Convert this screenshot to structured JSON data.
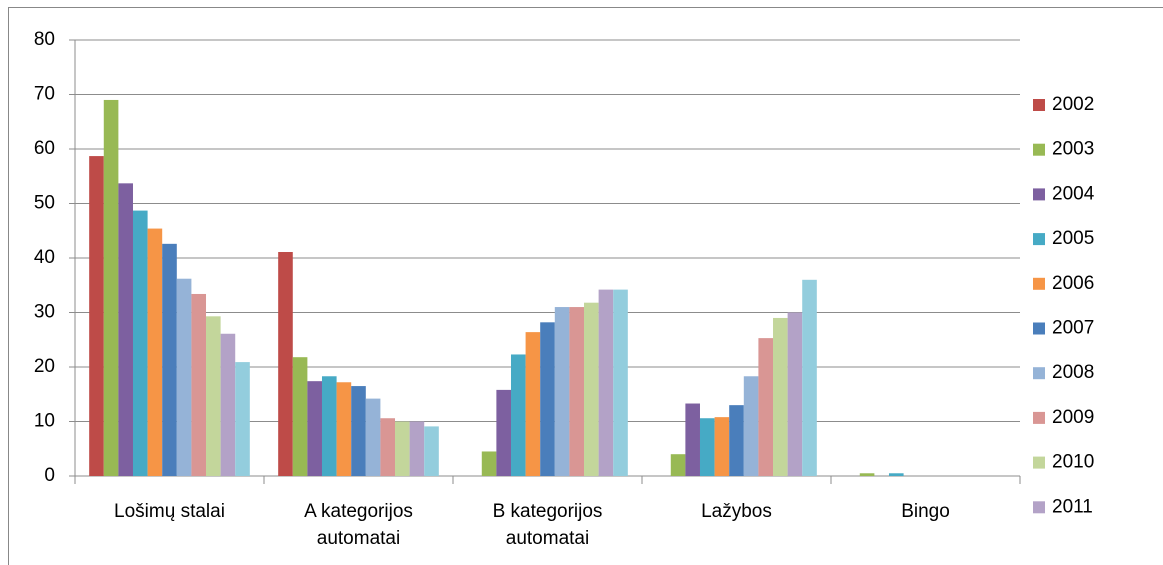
{
  "chart_data": {
    "type": "bar",
    "categories": [
      "Lošimų stalai",
      "A kategorijos automatai",
      "B kategorijos automatai",
      "Lažybos",
      "Bingo"
    ],
    "series": [
      {
        "name": "2002",
        "color": "#BE4B48",
        "values": [
          58.7,
          41.1,
          0,
          0,
          0
        ]
      },
      {
        "name": "2003",
        "color": "#98B954",
        "values": [
          69,
          21.8,
          4.5,
          4,
          0.5
        ]
      },
      {
        "name": "2004",
        "color": "#7D60A0",
        "values": [
          53.7,
          17.4,
          15.8,
          13.3,
          0
        ]
      },
      {
        "name": "2005",
        "color": "#46AAC5",
        "values": [
          48.7,
          18.3,
          22.3,
          10.6,
          0.5
        ]
      },
      {
        "name": "2006",
        "color": "#F69546",
        "values": [
          45.4,
          17.2,
          26.4,
          10.8,
          0
        ]
      },
      {
        "name": "2007",
        "color": "#4A7EBB",
        "values": [
          42.6,
          16.5,
          28.2,
          13,
          0
        ]
      },
      {
        "name": "2008",
        "color": "#95B3D7",
        "values": [
          36.2,
          14.2,
          31,
          18.3,
          0
        ]
      },
      {
        "name": "2009",
        "color": "#D99694",
        "values": [
          33.4,
          10.6,
          31,
          25.3,
          0
        ]
      },
      {
        "name": "2010",
        "color": "#C3D69B",
        "values": [
          29.3,
          10,
          31.8,
          29,
          0
        ]
      },
      {
        "name": "2011",
        "color": "#B3A2C7",
        "values": [
          26.1,
          10,
          34.2,
          30,
          0
        ]
      },
      {
        "name": null,
        "color": "#93CDDD",
        "values": [
          20.9,
          9.1,
          34.2,
          36,
          0
        ]
      }
    ],
    "ylim": [
      0,
      80
    ],
    "yticks": [
      0,
      10,
      20,
      30,
      40,
      50,
      60,
      70,
      80
    ],
    "grid": true
  }
}
